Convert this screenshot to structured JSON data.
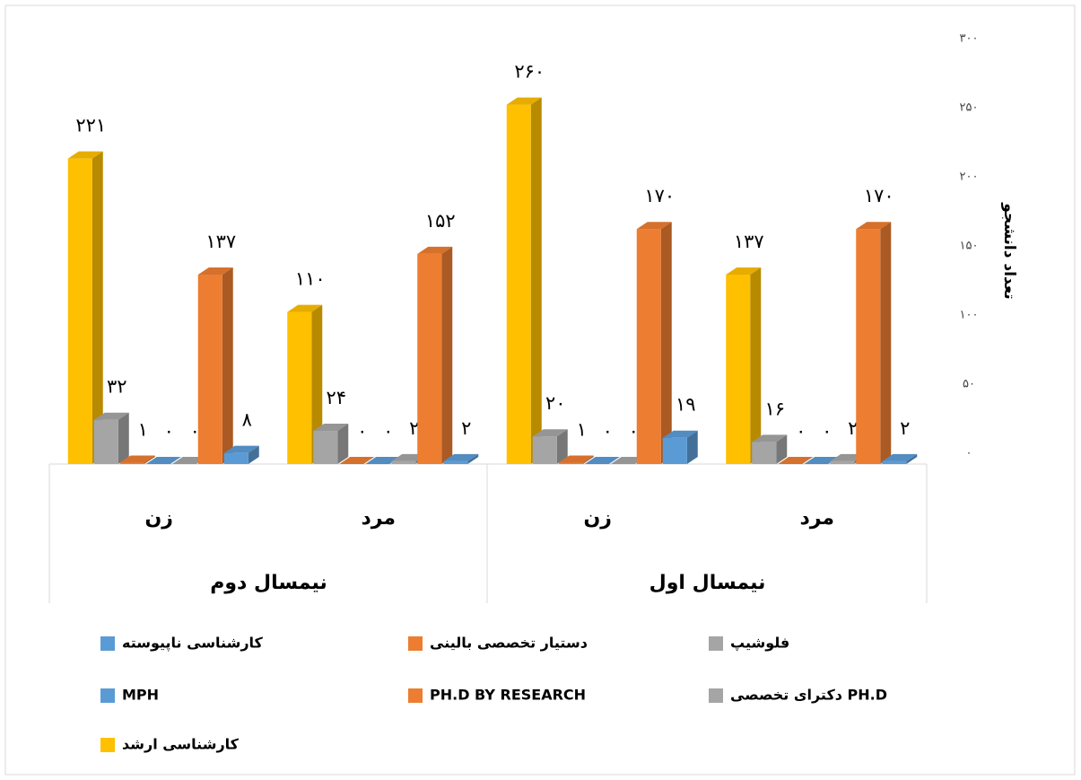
{
  "chart_data": {
    "type": "bar3d",
    "y_axis_label": "تعداد دانشجو",
    "categories": [
      "زن",
      "مرد",
      "زن",
      "مرد"
    ],
    "category_groups": [
      "نیمسال دوم",
      "نیمسال اول"
    ],
    "ylim": [
      0,
      300
    ],
    "yticks": [
      {
        "value": 0,
        "label": "۰"
      },
      {
        "value": 50,
        "label": "۵۰"
      },
      {
        "value": 100,
        "label": "۱۰۰"
      },
      {
        "value": 150,
        "label": "۱۵۰"
      },
      {
        "value": 200,
        "label": "۲۰۰"
      },
      {
        "value": 250,
        "label": "۲۵۰"
      },
      {
        "value": 300,
        "label": "۳۰۰"
      }
    ],
    "series": [
      {
        "name": "کارشناسی ارشد",
        "color": "#ffc000",
        "values": [
          221,
          110,
          260,
          137
        ],
        "value_labels": [
          "۲۲۱",
          "۱۱۰",
          "۲۶۰",
          "۱۳۷"
        ]
      },
      {
        "name": "دکترای تخصصی PH.D",
        "color": "#a5a5a5",
        "values": [
          32,
          24,
          20,
          16
        ],
        "value_labels": [
          "۳۲",
          "۲۴",
          "۲۰",
          "۱۶"
        ]
      },
      {
        "name": "PH.D BY RESEARCH",
        "color": "#ed7d31",
        "values": [
          1,
          0,
          1,
          0
        ],
        "value_labels": [
          "۱",
          "۰",
          "۱",
          "۰"
        ]
      },
      {
        "name": "MPH",
        "color": "#5b9bd5",
        "values": [
          0,
          0,
          0,
          0
        ],
        "value_labels": [
          "۰",
          "۰",
          "۰",
          "۰"
        ]
      },
      {
        "name": "فلوشیپ",
        "color": "#a5a5a5",
        "values": [
          0,
          2,
          0,
          2
        ],
        "value_labels": [
          "۰",
          "۲",
          "۰",
          "۲"
        ]
      },
      {
        "name": "دستیار تخصصی بالینی",
        "color": "#ed7d31",
        "values": [
          137,
          152,
          170,
          170
        ],
        "value_labels": [
          "۱۳۷",
          "۱۵۲",
          "۱۷۰",
          "۱۷۰"
        ]
      },
      {
        "name": "کارشناسی ناپیوسته",
        "color": "#5b9bd5",
        "values": [
          8,
          2,
          19,
          2
        ],
        "value_labels": [
          "۸",
          "۲",
          "۱۹",
          "۲"
        ]
      }
    ]
  }
}
